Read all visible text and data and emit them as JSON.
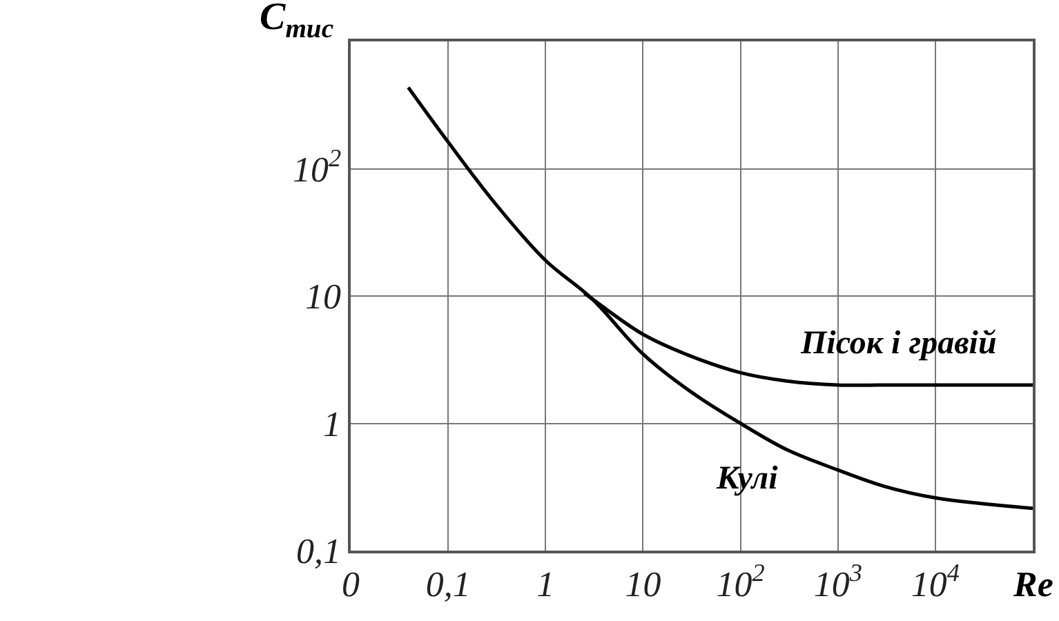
{
  "chart_data": {
    "type": "line",
    "xlabel": "Re",
    "ylabel": "C$_{тис}$",
    "log": "xy",
    "grid": true,
    "legend": false,
    "marker": "none",
    "line_style": "solid",
    "xlim": [
      0.01,
      100000
    ],
    "ylim": [
      0.1,
      1000
    ],
    "xticks": [
      {
        "value": 0.01,
        "label": "0"
      },
      {
        "value": 0.1,
        "label": "0,1"
      },
      1,
      10,
      {
        "value": 100,
        "label": "10$^{2}$"
      },
      {
        "value": 1000,
        "label": "10$^{3}$"
      },
      {
        "value": 10000,
        "label": "10$^{4}$"
      },
      {
        "value": 100000,
        "label": null
      }
    ],
    "yticks": [
      {
        "value": 0.1,
        "label": "0,1"
      },
      1,
      10,
      {
        "value": 100,
        "label": "10$^{2}$"
      },
      {
        "value": 1000,
        "label": null
      }
    ],
    "series": [
      {
        "name": "Пісок і гравій",
        "color": "#000000",
        "x": [
          2.5,
          3,
          10,
          30,
          100,
          300,
          1000,
          3000,
          10000,
          100000
        ],
        "values": [
          10.5,
          9.5,
          5.0,
          3.4,
          2.5,
          2.15,
          2.0,
          2.0,
          2.0,
          2.0
        ]
      },
      {
        "name": "Кулі",
        "color": "#000000",
        "x": [
          0.039,
          0.1,
          0.3,
          1,
          3,
          10,
          30,
          100,
          300,
          1000,
          3000,
          10000,
          100000
        ],
        "values": [
          435,
          162,
          54,
          19,
          9.5,
          3.5,
          1.8,
          1.0,
          0.62,
          0.43,
          0.32,
          0.26,
          0.215
        ]
      }
    ]
  }
}
